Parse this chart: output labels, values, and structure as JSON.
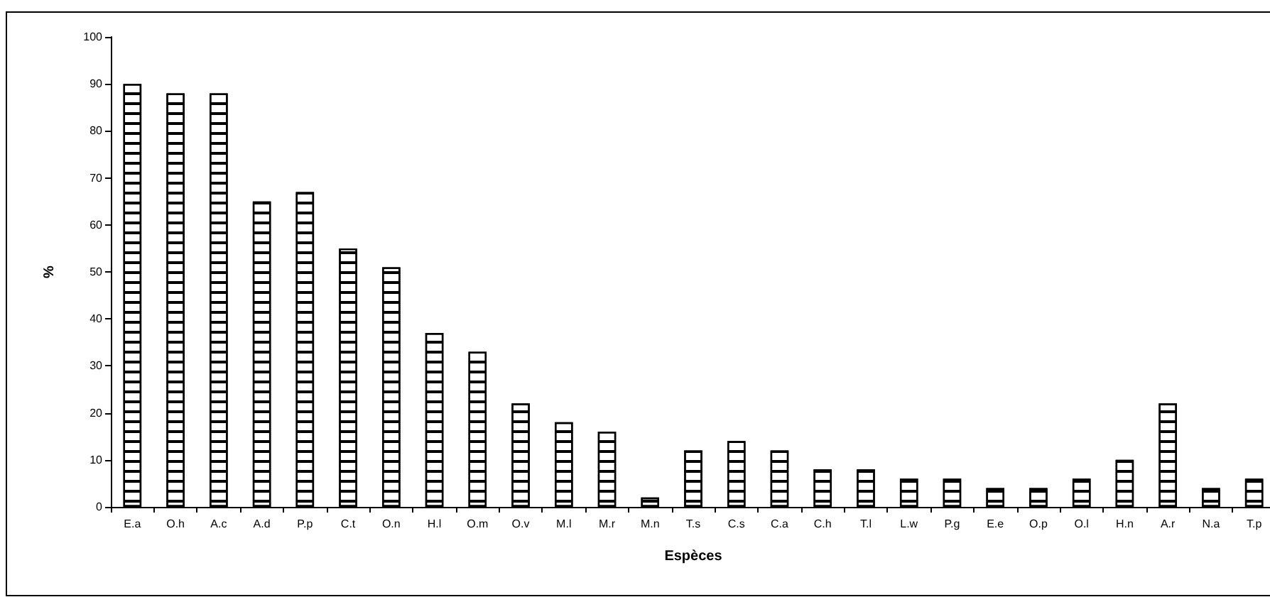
{
  "chart_data": {
    "type": "bar",
    "xlabel": "Espèces",
    "ylabel": "%",
    "categories": [
      "E.a",
      "O.h",
      "A.c",
      "A.d",
      "P.p",
      "C.t",
      "O.n",
      "H.l",
      "O.m",
      "O.v",
      "M.l",
      "M.r",
      "M.n",
      "T.s",
      "C.s",
      "C.a",
      "C.h",
      "T.l",
      "L.w",
      "P.g",
      "E.e",
      "O.p",
      "O.l",
      "H.n",
      "A.r",
      "N.a",
      "T.p"
    ],
    "values": [
      90,
      88,
      88,
      65,
      67,
      55,
      51,
      37,
      33,
      22,
      18,
      16,
      2,
      12,
      14,
      12,
      8,
      8,
      6,
      6,
      4,
      4,
      6,
      10,
      22,
      4,
      6
    ],
    "color": "#ffffff",
    "ylim": [
      0,
      100
    ],
    "yticks": [
      0,
      10,
      20,
      30,
      40,
      50,
      60,
      70,
      80,
      90,
      100
    ],
    "grid": false
  }
}
